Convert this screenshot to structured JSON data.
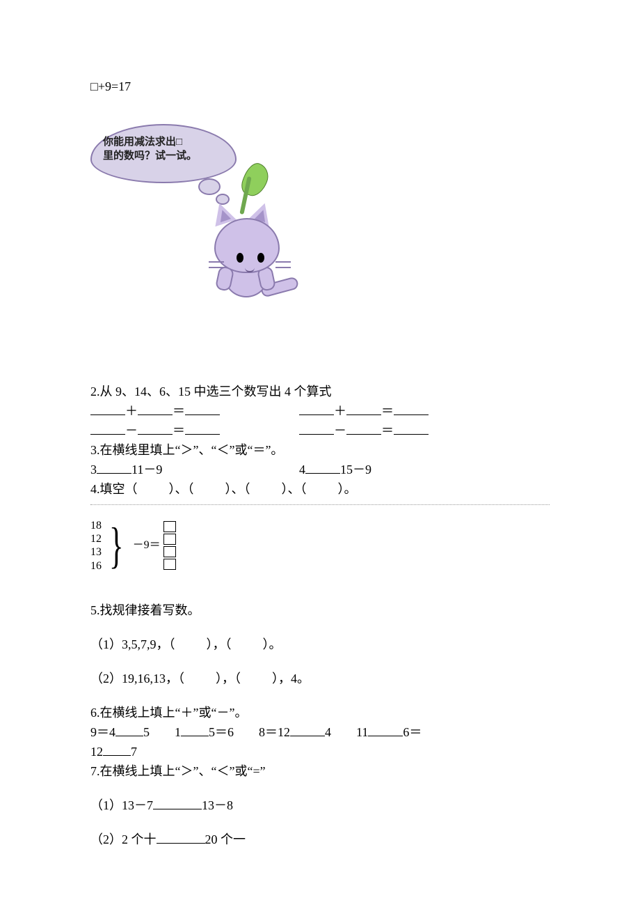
{
  "q1": {
    "equation": "□+9=17",
    "bubble_line1": "你能用减法求出□",
    "bubble_line2": "里的数吗？试一试。"
  },
  "q2": {
    "prompt": "2.从 9、14、6、15 中选三个数写出 4 个算式",
    "op_plus": "＋",
    "op_minus": "－",
    "eq": "＝"
  },
  "q3": {
    "prompt": "3.在横线里填上“＞”、“＜”或“＝”。",
    "left_a": "3",
    "left_b": "11－9",
    "right_a": "4",
    "right_b": "15－9"
  },
  "q4": {
    "prompt_prefix": "4.填空（",
    "prompt_mid": "）、（",
    "prompt_suffix": "）。",
    "nums": [
      "18",
      "12",
      "13",
      "16"
    ],
    "expr": "－9＝"
  },
  "q5": {
    "prompt": "5.找规律接着写数。",
    "line1_pre": "（1）3,5,7,9，（",
    "line1_mid": "），（",
    "line1_post": "）。",
    "line2_pre": "（2）19,16,13，（",
    "line2_mid": "），（",
    "line2_post": "），4。"
  },
  "q6": {
    "prompt": "6.在横线上填上“＋”或“－”。",
    "p1a": "9＝4",
    "p1b": "5",
    "p2a": "1",
    "p2b": "5＝6",
    "p3a": "8＝12",
    "p3b": "4",
    "p4a": "11",
    "p4b": "6＝",
    "p5a": "12",
    "p5b": "7"
  },
  "q7": {
    "prompt": "7.在横线上填上“＞”、“＜”或“=”",
    "line1a": "（1）13－7",
    "line1b": "13－8",
    "line2a": "（2）2 个十",
    "line2b": "20 个一"
  },
  "style": {
    "background_color": "#ffffff",
    "text_color": "#000000",
    "font_family": "SimSun",
    "base_font_size_pt": 14,
    "bubble_fill": "#d8d2e8",
    "bubble_stroke": "#8a7aad",
    "cat_fill": "#cfc1e8",
    "leaf_fill": "#8fcf5c",
    "stem_fill": "#6fa84f"
  }
}
